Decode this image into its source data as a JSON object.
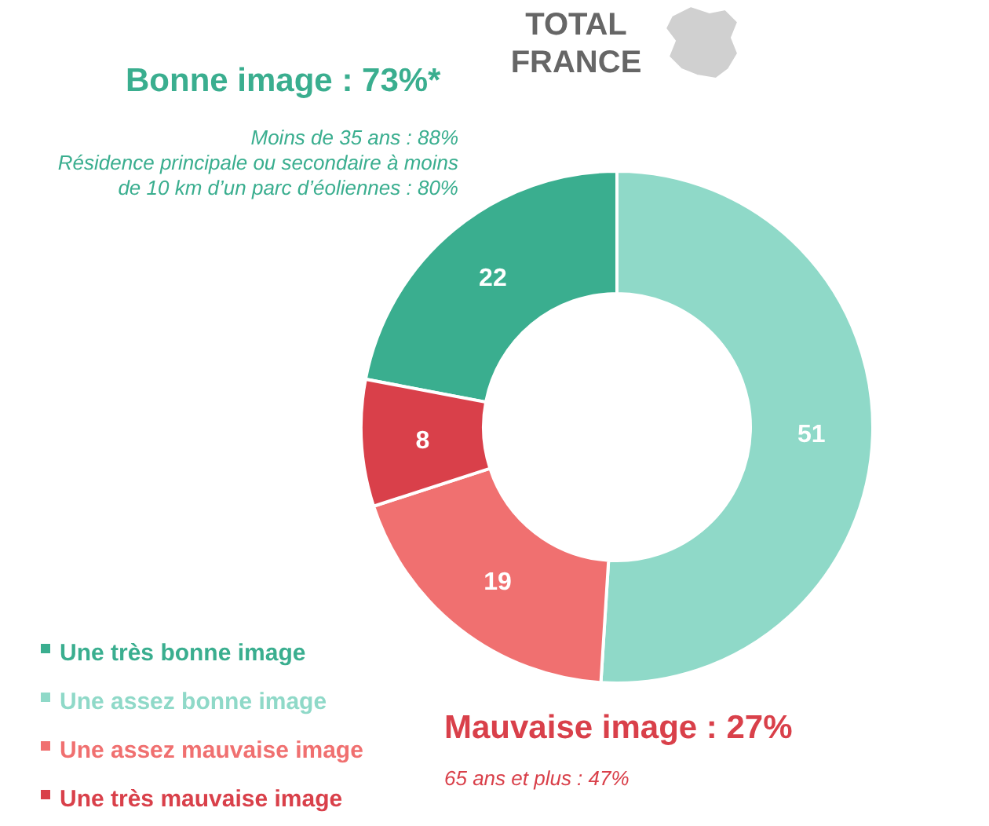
{
  "chart_data": {
    "type": "donut",
    "title": "TOTAL\nFRANCE",
    "categories": [
      "Une très bonne image",
      "Une assez bonne image",
      "Une assez mauvaise image",
      "Une très mauvaise image"
    ],
    "values": [
      22,
      51,
      19,
      8
    ],
    "colors": [
      "#3aae8f",
      "#8fd9c8",
      "#f07070",
      "#d9404a"
    ],
    "data_labels": true,
    "legend": "bottom left",
    "annotations": [
      "Bonne image : 73%*",
      "Moins de 35 ans : 88%",
      "Résidence principale ou secondaire à moins\nde 10 km d’un parc d’éoliennes : 80%",
      "Mauvaise image : 27%",
      "65 ans et plus : 47%"
    ]
  }
}
